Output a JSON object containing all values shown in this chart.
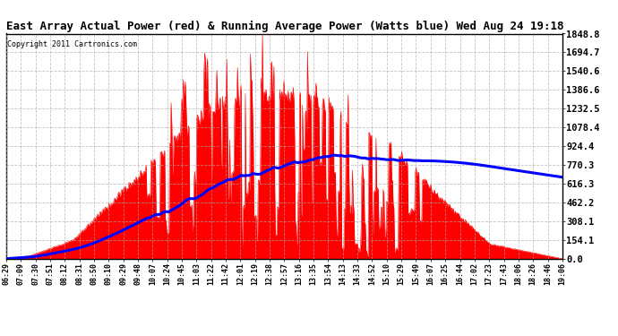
{
  "title": "East Array Actual Power (red) & Running Average Power (Watts blue) Wed Aug 24 19:18",
  "copyright": "Copyright 2011 Cartronics.com",
  "yticks": [
    0.0,
    154.1,
    308.1,
    462.2,
    616.3,
    770.3,
    924.4,
    1078.4,
    1232.5,
    1386.6,
    1540.6,
    1694.7,
    1848.8
  ],
  "ymax": 1848.8,
  "bg_color": "#ffffff",
  "fill_color": "#ff0000",
  "line_color": "#0000ff",
  "grid_color": "#aaaaaa",
  "xtick_labels": [
    "06:29",
    "07:09",
    "07:30",
    "07:51",
    "08:12",
    "08:31",
    "08:50",
    "09:10",
    "09:29",
    "09:48",
    "10:07",
    "10:24",
    "10:45",
    "11:03",
    "11:22",
    "11:42",
    "12:01",
    "12:19",
    "12:38",
    "12:57",
    "13:16",
    "13:35",
    "13:54",
    "14:13",
    "14:33",
    "14:52",
    "15:10",
    "15:29",
    "15:49",
    "16:07",
    "16:25",
    "16:44",
    "17:02",
    "17:23",
    "17:43",
    "18:06",
    "18:26",
    "18:46",
    "19:06"
  ],
  "title_fontsize": 9,
  "ylabel_fontsize": 7,
  "xlabel_fontsize": 6
}
